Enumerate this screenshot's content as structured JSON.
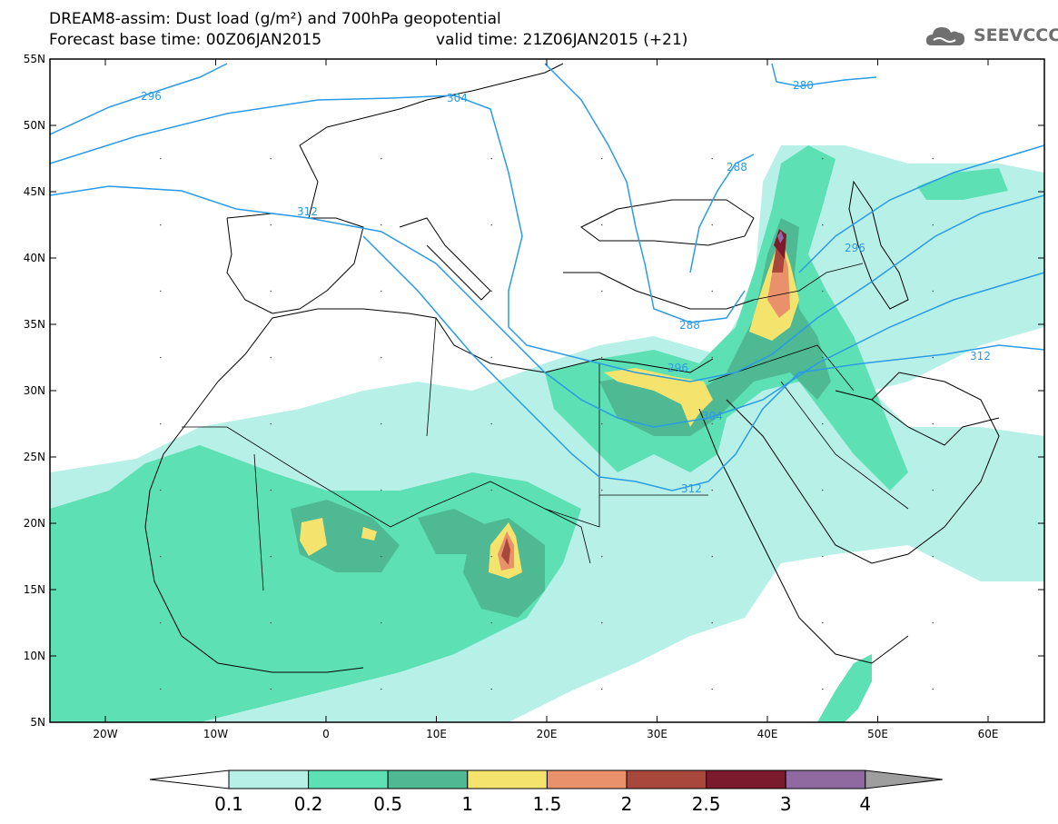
{
  "title": {
    "line1": "DREAM8-assim: Dust load (g/m²) and 700hPa geopotential",
    "line2": "Forecast base time: 00Z06JAN2015",
    "valid": "valid time: 21Z06JAN2015 (+21)"
  },
  "logo": {
    "text": "SEEVCCC",
    "icon": "cloud-icon"
  },
  "axes": {
    "lat_labels": [
      "55N",
      "50N",
      "45N",
      "40N",
      "35N",
      "30N",
      "25N",
      "20N",
      "15N",
      "10N",
      "5N"
    ],
    "lon_labels": [
      "20W",
      "10W",
      "0",
      "10E",
      "20E",
      "30E",
      "40E",
      "50E",
      "60E"
    ]
  },
  "colorbar": {
    "labels": [
      "0.1",
      "0.2",
      "0.5",
      "1",
      "1.5",
      "2",
      "2.5",
      "3",
      "4"
    ],
    "colors": [
      "#b7f0e6",
      "#5de0b4",
      "#4fb994",
      "#f4e46e",
      "#e8916a",
      "#a8473b",
      "#7a1a2c",
      "#8f6aa1",
      "#9e9e9e"
    ]
  },
  "contours": {
    "labels": [
      "296",
      "304",
      "312",
      "280",
      "288",
      "288",
      "296",
      "296",
      "312",
      "304",
      "312"
    ],
    "color": "#2a9be6"
  }
}
